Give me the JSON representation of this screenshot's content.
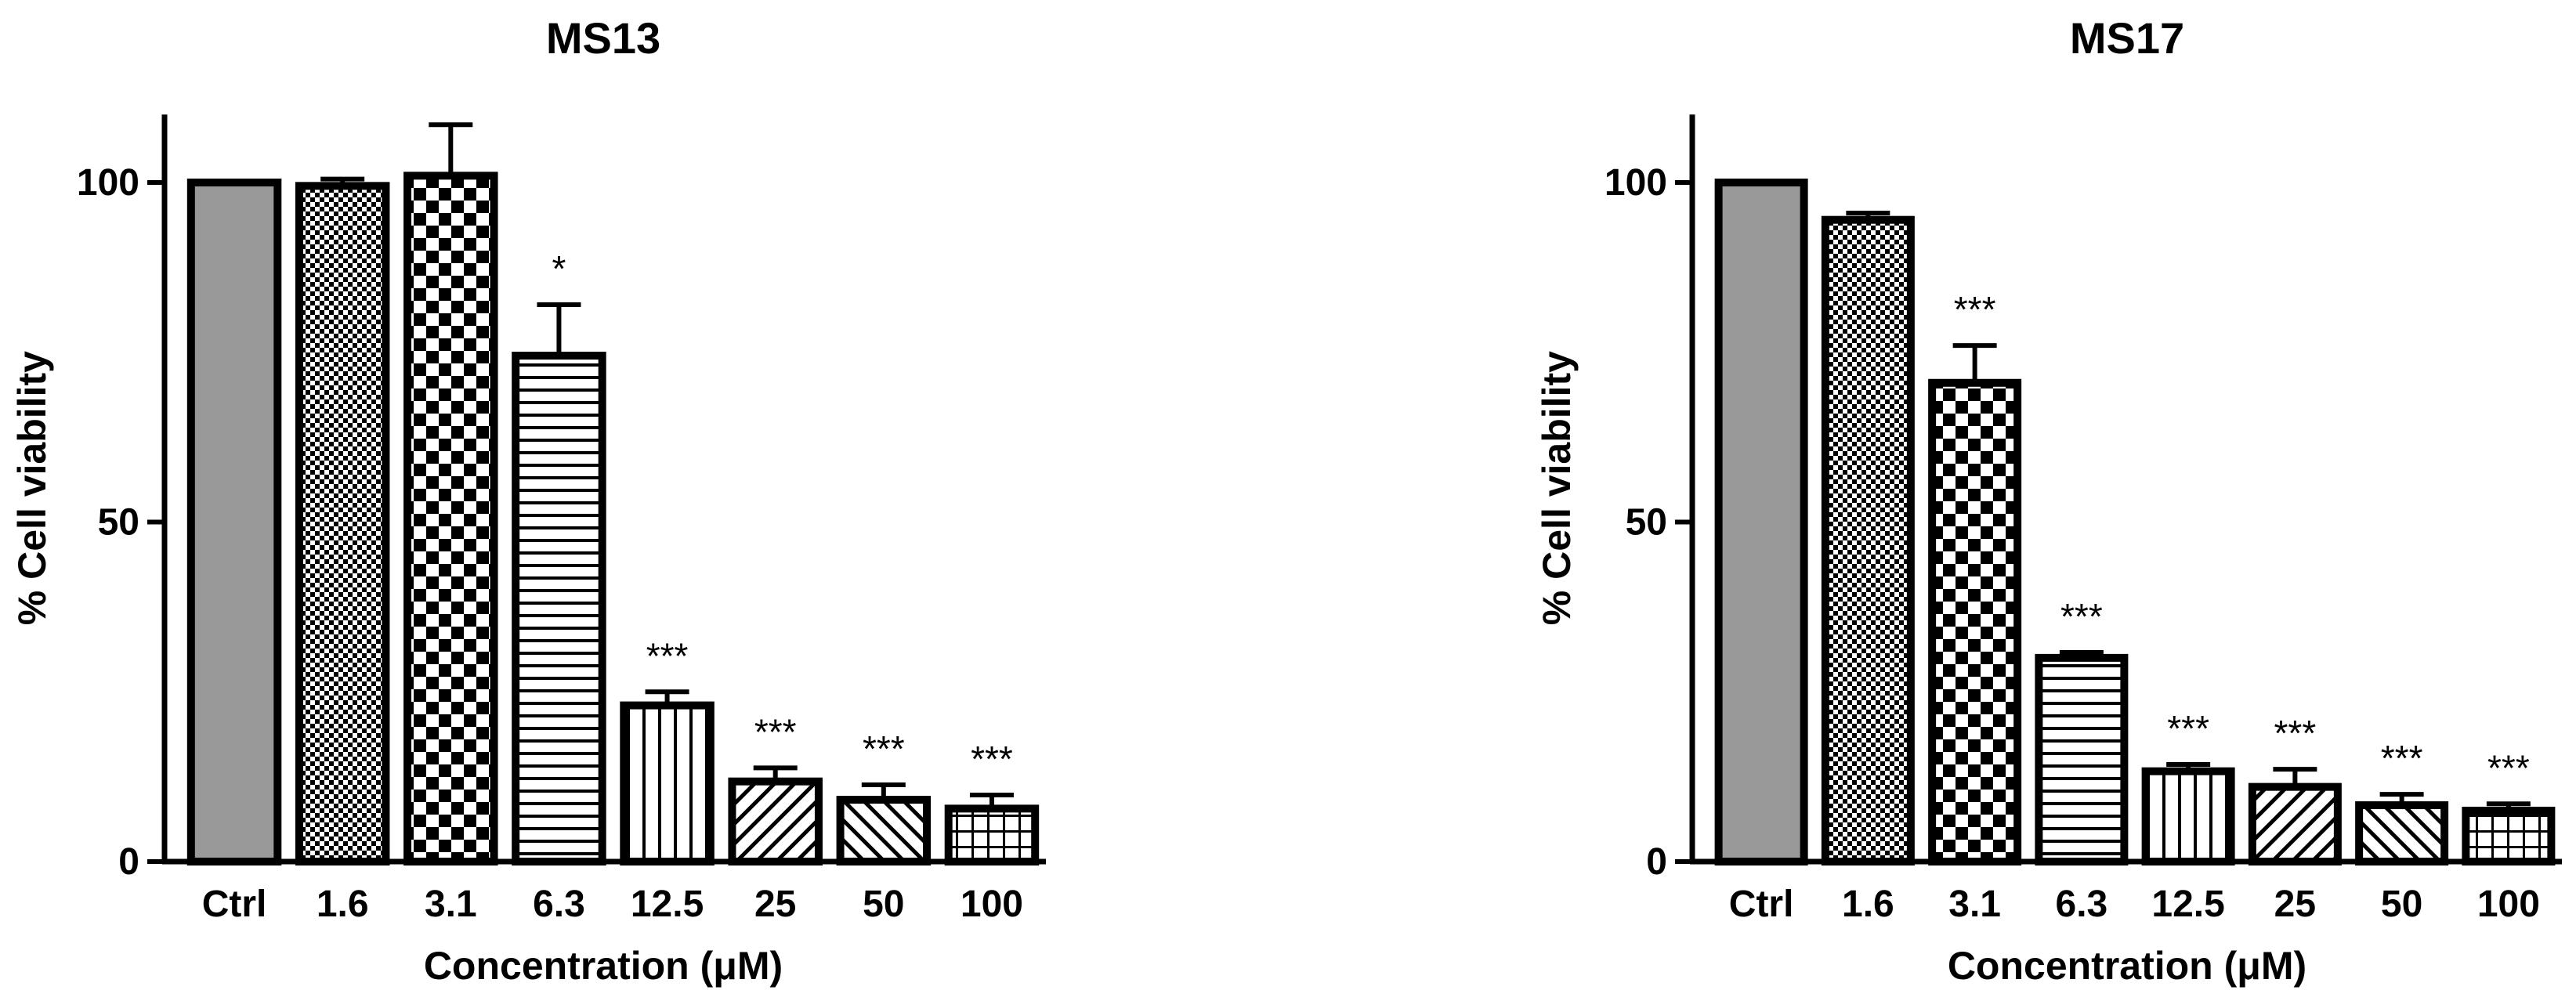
{
  "chart_data": [
    {
      "type": "bar",
      "title": "MS13",
      "xlabel": "Concentration (μM)",
      "ylabel": "% Cell viability",
      "ylim": [
        0,
        110
      ],
      "yticks": [
        0,
        50,
        100
      ],
      "grid": false,
      "categories": [
        "Ctrl",
        "1.6",
        "3.1",
        "6.3",
        "12.5",
        "25",
        "50",
        "100"
      ],
      "values": [
        100,
        99.5,
        101,
        74.5,
        23,
        11.8,
        9.1,
        7.8
      ],
      "errors": [
        0,
        1,
        7.5,
        7.5,
        2,
        2,
        2.2,
        2
      ],
      "significance": [
        "",
        "",
        "",
        "*",
        "***",
        "***",
        "***",
        "***"
      ],
      "patterns": [
        "solid-gray",
        "fine-check",
        "checker",
        "horizontal",
        "vertical",
        "diagonal-right",
        "diagonal-left",
        "grid"
      ]
    },
    {
      "type": "bar",
      "title": "MS17",
      "xlabel": "Concentration (μM)",
      "ylabel": "% Cell viability",
      "ylim": [
        0,
        110
      ],
      "yticks": [
        0,
        50,
        100
      ],
      "grid": false,
      "categories": [
        "Ctrl",
        "1.6",
        "3.1",
        "6.3",
        "12.5",
        "25",
        "50",
        "100"
      ],
      "values": [
        100,
        94.5,
        70.5,
        30,
        13.3,
        11,
        8.3,
        7.5
      ],
      "errors": [
        0,
        1,
        5.5,
        0.8,
        1,
        2.6,
        1.6,
        1
      ],
      "significance": [
        "",
        "",
        "***",
        "***",
        "***",
        "***",
        "***",
        "***"
      ],
      "patterns": [
        "solid-gray",
        "fine-check",
        "checker",
        "horizontal",
        "vertical",
        "diagonal-right",
        "diagonal-left",
        "grid"
      ]
    }
  ]
}
